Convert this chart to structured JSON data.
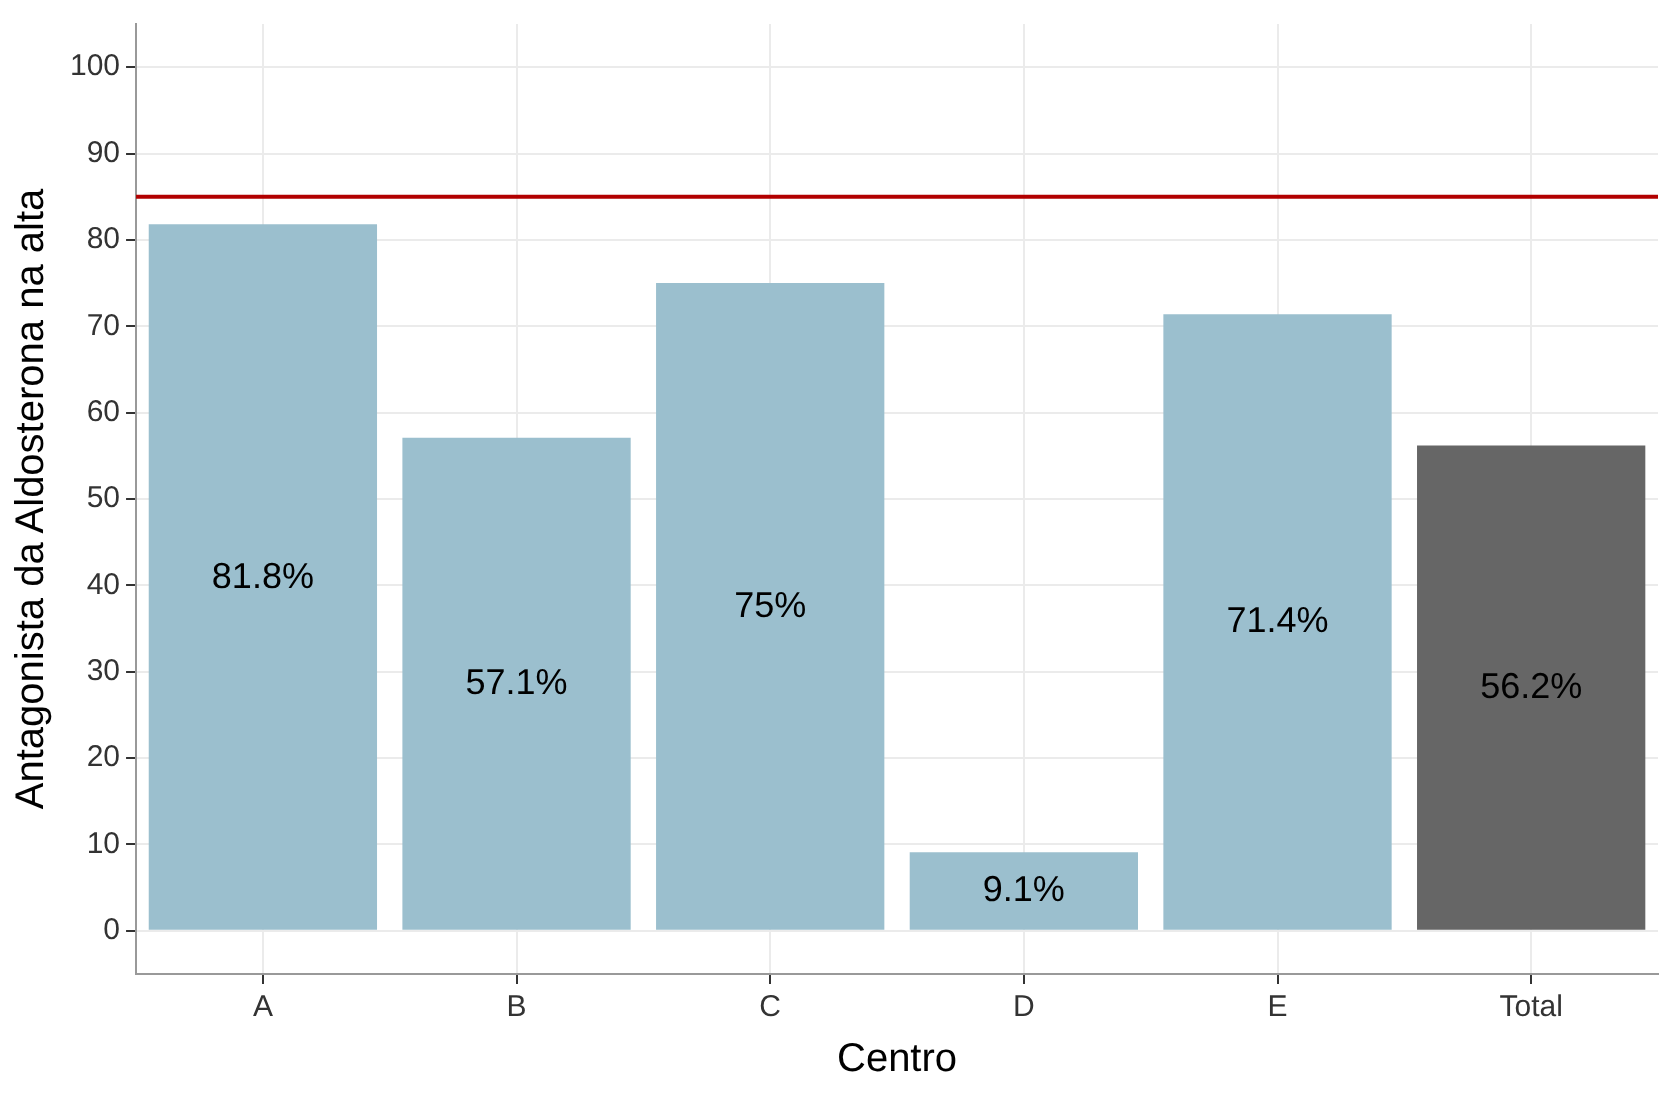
{
  "chart_data": {
    "type": "bar",
    "xlabel": "Centro",
    "ylabel": "Antagonista da Aldosterona na alta",
    "categories": [
      "A",
      "B",
      "C",
      "D",
      "E",
      "Total"
    ],
    "values": [
      81.8,
      57.1,
      75,
      9.1,
      71.4,
      56.2
    ],
    "colors": [
      "#9bbfce",
      "#9bbfce",
      "#9bbfce",
      "#9bbfce",
      "#9bbfce",
      "#666666"
    ],
    "value_labels": [
      "81.8%",
      "57.1%",
      "75%",
      "9.1%",
      "71.4%",
      "56.2%"
    ],
    "ylim": [
      -5,
      105
    ],
    "yticks": [
      0,
      10,
      20,
      30,
      40,
      50,
      60,
      70,
      80,
      90,
      100
    ],
    "ref_lines": [
      {
        "axis": "y",
        "value": 85,
        "color": "#b20000"
      }
    ],
    "grid": true
  }
}
